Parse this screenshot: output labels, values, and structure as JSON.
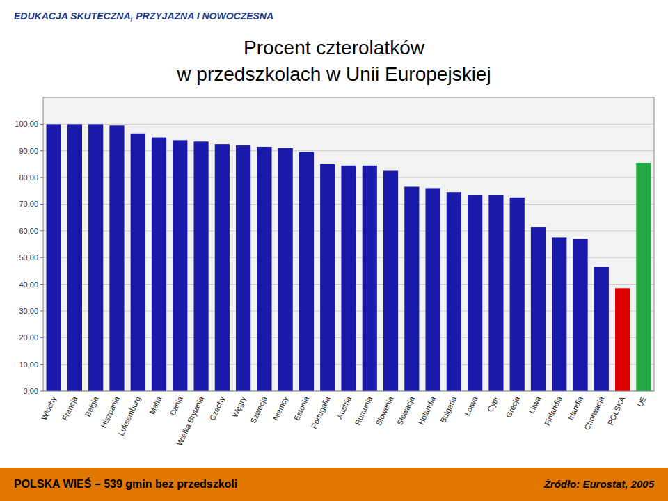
{
  "chart_data": {
    "type": "bar",
    "title": "Procent czterolatków",
    "subtitle": "w przedszkolach w Unii Europejskiej",
    "annotations": [
      "EDUKACJA SKUTECZNA, PRZYJAZNA I NOWOCZESNA",
      "POLSKA WIEŚ – 539 gmin bez przedszkoli",
      "Źródło: Eurostat, 2005"
    ],
    "categories": [
      "Włochy",
      "Francja",
      "Belgia",
      "Hiszpania",
      "Luksemburg",
      "Malta",
      "Dania",
      "Wielka Brytania",
      "Czechy",
      "Węgry",
      "Szwecja",
      "Niemcy",
      "Estonia",
      "Portugalia",
      "Austria",
      "Rumunia",
      "Słowenia",
      "Słowacja",
      "Holandia",
      "Bułgaria",
      "Łotwa",
      "Cypr",
      "Grecja",
      "Litwa",
      "Finlandia",
      "Irlandia",
      "Chorwacja",
      "POLSKA",
      "UE"
    ],
    "values": [
      100.0,
      100.0,
      100.0,
      99.5,
      96.5,
      95.0,
      94.0,
      93.5,
      92.5,
      92.0,
      91.5,
      91.0,
      89.5,
      85.0,
      84.5,
      84.5,
      82.5,
      76.5,
      76.0,
      74.5,
      73.5,
      73.5,
      72.5,
      61.5,
      57.5,
      57.0,
      46.5,
      38.5,
      85.5
    ],
    "colors": [
      "#1a1aaa",
      "#1a1aaa",
      "#1a1aaa",
      "#1a1aaa",
      "#1a1aaa",
      "#1a1aaa",
      "#1a1aaa",
      "#1a1aaa",
      "#1a1aaa",
      "#1a1aaa",
      "#1a1aaa",
      "#1a1aaa",
      "#1a1aaa",
      "#1a1aaa",
      "#1a1aaa",
      "#1a1aaa",
      "#1a1aaa",
      "#1a1aaa",
      "#1a1aaa",
      "#1a1aaa",
      "#1a1aaa",
      "#1a1aaa",
      "#1a1aaa",
      "#1a1aaa",
      "#1a1aaa",
      "#1a1aaa",
      "#1a1aaa",
      "#dd0000",
      "#22aa44"
    ],
    "ylim": [
      0,
      110
    ],
    "yticks": [
      {
        "value": 0,
        "label": "0,00"
      },
      {
        "value": 10,
        "label": "10,00"
      },
      {
        "value": 20,
        "label": "20,00"
      },
      {
        "value": 30,
        "label": "30,00"
      },
      {
        "value": 40,
        "label": "40,00"
      },
      {
        "value": 50,
        "label": "50,00"
      },
      {
        "value": 60,
        "label": "60,00"
      },
      {
        "value": 70,
        "label": "70,00"
      },
      {
        "value": 80,
        "label": "80,00"
      },
      {
        "value": 90,
        "label": "90,00"
      },
      {
        "value": 100,
        "label": "100,00"
      }
    ],
    "grid": true
  }
}
